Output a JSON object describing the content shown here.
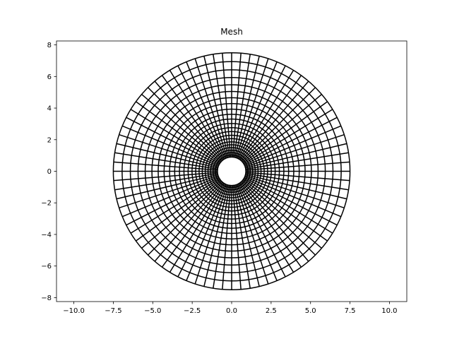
{
  "chart_data": {
    "type": "mesh",
    "title": "Mesh",
    "xlabel": "",
    "ylabel": "",
    "xlim": [
      -11.1,
      11.1
    ],
    "ylim": [
      -8.25,
      8.25
    ],
    "xticks": [
      -10.0,
      -7.5,
      -5.0,
      -2.5,
      0.0,
      2.5,
      5.0,
      7.5,
      10.0
    ],
    "xtick_labels": [
      "−10.0",
      "−7.5",
      "−5.0",
      "−2.5",
      "0.0",
      "2.5",
      "5.0",
      "7.5",
      "10.0"
    ],
    "yticks": [
      -8,
      -6,
      -4,
      -2,
      0,
      2,
      4,
      6,
      8
    ],
    "ytick_labels": [
      "−8",
      "−6",
      "−4",
      "−2",
      "0",
      "2",
      "4",
      "6",
      "8"
    ],
    "grid": false,
    "mesh": {
      "center": [
        0,
        0
      ],
      "inner_radius": 0.9,
      "outer_radius": 7.5,
      "radial_lines": 80,
      "rings": 22,
      "radial_growth": 1.07,
      "line_color": "#000000"
    }
  }
}
